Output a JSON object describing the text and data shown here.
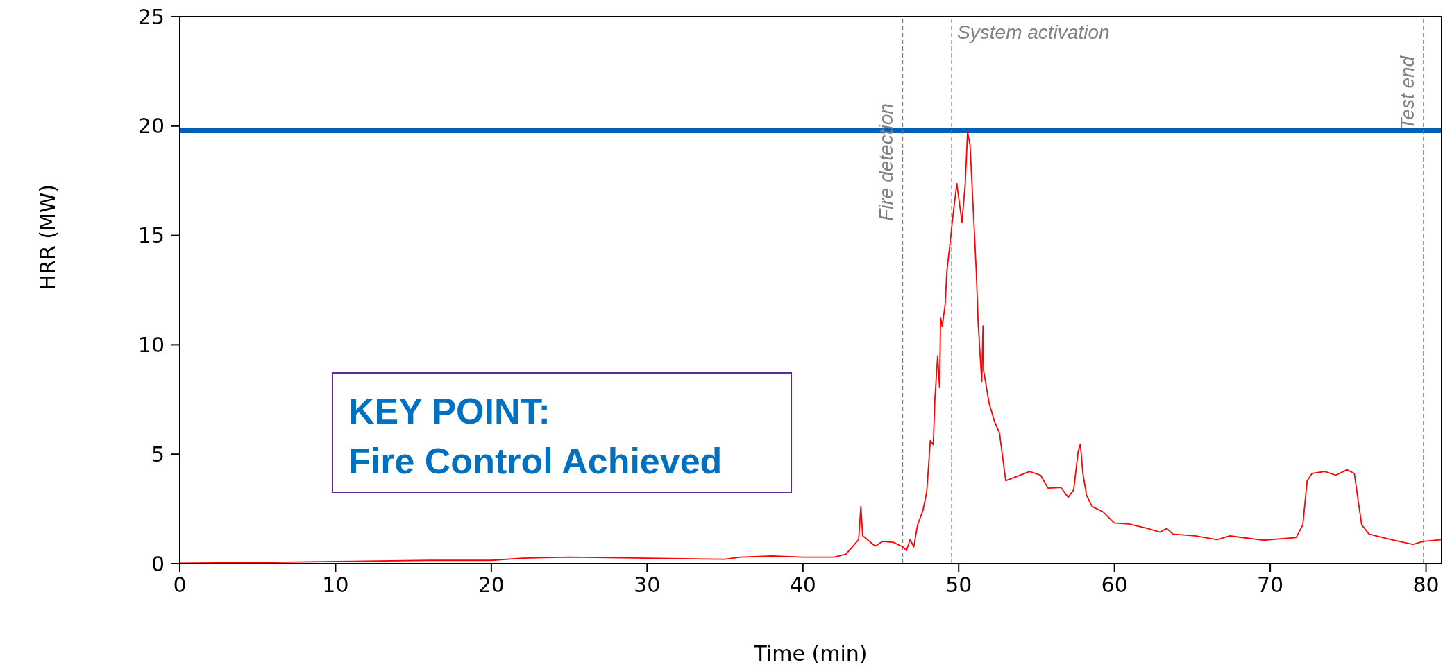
{
  "chart_data": {
    "type": "line",
    "xlabel": "Time (min)",
    "ylabel": "HRR (MW)",
    "xlim": [
      0,
      81
    ],
    "xticks": [
      0,
      10,
      20,
      30,
      40,
      50,
      60,
      70,
      80
    ],
    "ylim": [
      0,
      25
    ],
    "yticks": [
      0,
      5,
      10,
      15,
      20,
      25
    ],
    "grid": false,
    "marker": "none",
    "line_style": "solid",
    "series": [
      {
        "color": "#ff0000",
        "x": [
          0,
          5,
          10,
          16,
          20,
          22,
          25,
          30,
          35,
          36,
          38,
          40,
          42,
          42.76,
          43.18,
          43.58,
          43.72,
          43.84,
          44.64,
          45.12,
          45.82,
          46.41,
          46.65,
          46.88,
          47.12,
          47.36,
          47.71,
          47.95,
          48.18,
          48.37,
          48.47,
          48.65,
          48.77,
          48.84,
          48.94,
          49.13,
          49.24,
          49.48,
          49.6,
          49.88,
          50.21,
          50.42,
          50.57,
          50.73,
          50.97,
          51.13,
          51.25,
          51.48,
          51.56,
          51.6,
          51.96,
          52.31,
          52.62,
          53.02,
          53.61,
          54.55,
          55.26,
          55.73,
          56.56,
          57.03,
          57.38,
          57.67,
          57.81,
          57.97,
          58.21,
          58.56,
          59.27,
          59.98,
          60.92,
          62.1,
          62.93,
          63.35,
          63.75,
          65.17,
          66.58,
          67.41,
          69.53,
          71.66,
          72.09,
          72.37,
          72.68,
          73.5,
          74.21,
          74.92,
          75.4,
          75.63,
          75.87,
          76.34,
          77.76,
          79.17,
          79.84,
          81
        ],
        "values": [
          0.02,
          0.05,
          0.1,
          0.15,
          0.15,
          0.25,
          0.3,
          0.25,
          0.2,
          0.3,
          0.35,
          0.3,
          0.3,
          0.43,
          0.77,
          1.1,
          2.61,
          1.27,
          0.8,
          1.02,
          0.97,
          0.77,
          0.6,
          1.1,
          0.77,
          1.77,
          2.44,
          3.28,
          5.63,
          5.43,
          7.48,
          9.49,
          8.06,
          11.25,
          10.83,
          11.84,
          13.35,
          14.86,
          15.7,
          17.37,
          15.61,
          17.37,
          19.72,
          19.13,
          15.7,
          13.35,
          11,
          8.32,
          10.86,
          8.82,
          7.31,
          6.47,
          5.97,
          3.79,
          3.95,
          4.21,
          4.04,
          3.45,
          3.48,
          3.03,
          3.37,
          5.13,
          5.46,
          4.12,
          3.12,
          2.61,
          2.36,
          1.86,
          1.81,
          1.61,
          1.44,
          1.61,
          1.35,
          1.27,
          1.1,
          1.27,
          1.07,
          1.19,
          1.77,
          3.79,
          4.12,
          4.21,
          4.04,
          4.29,
          4.12,
          2.95,
          1.77,
          1.35,
          1.1,
          0.88,
          1.02,
          1.1
        ]
      }
    ],
    "ref_lines": [
      {
        "axis": "y",
        "value": 19.8,
        "color": "#0060b8",
        "line_style": "solid"
      },
      {
        "axis": "x",
        "value": 46.4,
        "label": "Fire detection",
        "color": "#808080",
        "line_style": "dashed"
      },
      {
        "axis": "x",
        "value": 49.55,
        "label": "System activation",
        "color": "#808080",
        "line_style": "dashed"
      },
      {
        "axis": "x",
        "value": 79.84,
        "label": "Test end",
        "color": "#808080",
        "line_style": "dashed"
      }
    ],
    "annotations": [
      "KEY POINT:\nFire Control Achieved"
    ]
  }
}
